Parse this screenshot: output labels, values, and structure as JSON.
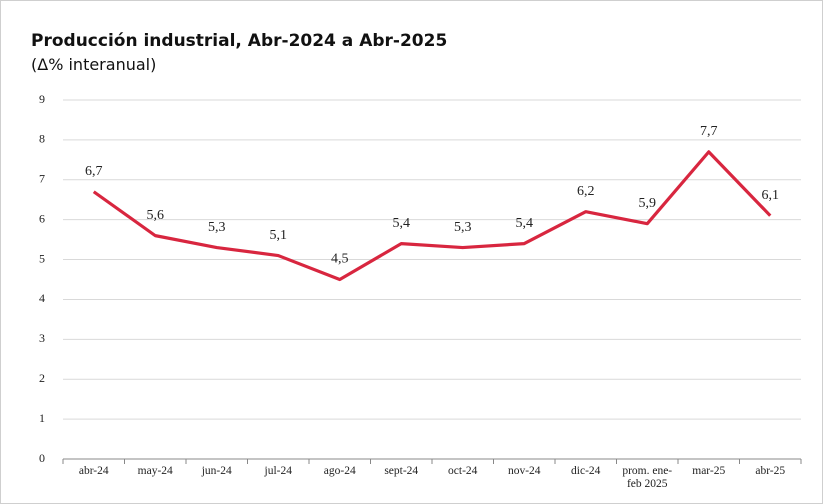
{
  "chart_data": {
    "type": "line",
    "title": "Producción industrial, Abr-2024 a Abr-2025",
    "subtitle": "(Δ% interanual)",
    "categories": [
      "abr-24",
      "may-24",
      "jun-24",
      "jul-24",
      "ago-24",
      "sept-24",
      "oct-24",
      "nov-24",
      "dic-24",
      "prom. ene-feb 2025",
      "mar-25",
      "abr-25"
    ],
    "series": [
      {
        "name": "Producción industrial",
        "color": "#d8263f",
        "values": [
          6.7,
          5.6,
          5.3,
          5.1,
          4.5,
          5.4,
          5.3,
          5.4,
          6.2,
          5.9,
          7.7,
          6.1
        ],
        "value_labels": [
          "6,7",
          "5,6",
          "5,3",
          "5,1",
          "4,5",
          "5,4",
          "5,3",
          "5,4",
          "6,2",
          "5,9",
          "7,7",
          "6,1"
        ]
      }
    ],
    "ylim": [
      0,
      9
    ],
    "yticks": [
      0,
      1,
      2,
      3,
      4,
      5,
      6,
      7,
      8,
      9
    ],
    "grid": true
  }
}
